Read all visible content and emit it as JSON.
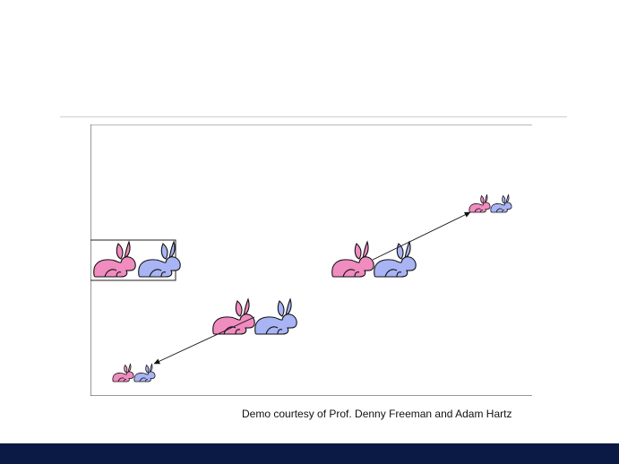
{
  "slide": {
    "caption": "Demo courtesy of Prof. Denny Freeman and Adam Hartz"
  },
  "colors": {
    "female_rabbit": "#f08cbf",
    "male_rabbit": "#a8b4f4",
    "outline": "#111111",
    "divider": "#cfcfcf",
    "footer": "#0b1a45"
  },
  "icons": {
    "female": "female-rabbit-icon",
    "male": "male-rabbit-icon"
  }
}
